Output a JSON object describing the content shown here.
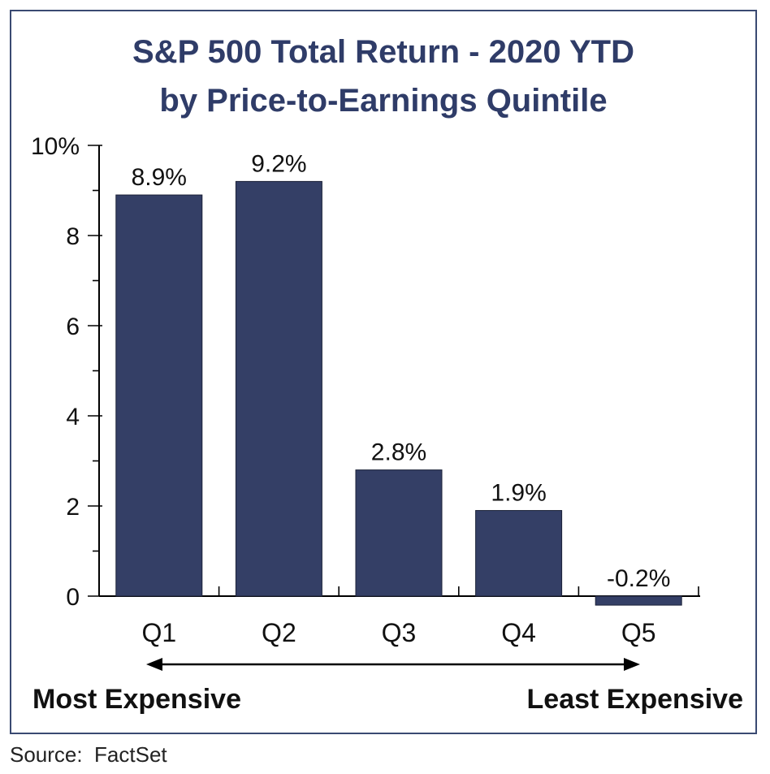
{
  "chart_data": {
    "type": "bar",
    "title_line1": "S&P 500 Total Return - 2020 YTD",
    "title_line2": "by Price-to-Earnings Quintile",
    "categories": [
      "Q1",
      "Q2",
      "Q3",
      "Q4",
      "Q5"
    ],
    "values": [
      8.9,
      9.2,
      2.8,
      1.9,
      -0.2
    ],
    "data_labels": [
      "8.9%",
      "9.2%",
      "2.8%",
      "1.9%",
      "-0.2%"
    ],
    "yticks": [
      "0",
      "2",
      "4",
      "6",
      "8",
      "10%"
    ],
    "ylim": [
      0,
      10
    ],
    "grid": false,
    "bar_color": "#343f66",
    "annotation_left": "Most Expensive",
    "annotation_right": "Least Expensive"
  },
  "source": "Source:  FactSet"
}
